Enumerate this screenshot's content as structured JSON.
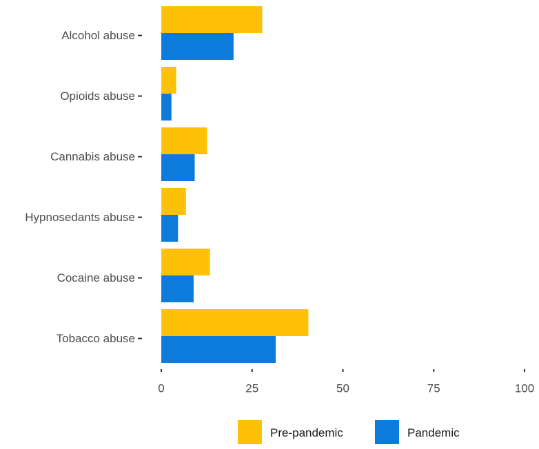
{
  "chart_data": {
    "type": "bar",
    "orientation": "horizontal",
    "categories": [
      "Alcohol abuse",
      "Opioids abuse",
      "Cannabis abuse",
      "Hypnosedants abuse",
      "Cocaine abuse",
      "Tobacco abuse"
    ],
    "series": [
      {
        "name": "Pre-pandemic",
        "color": "#FFC107",
        "values": [
          27.8,
          4.1,
          12.6,
          6.8,
          13.4,
          40.5
        ]
      },
      {
        "name": "Pandemic",
        "color": "#0C7BDC",
        "values": [
          19.9,
          2.8,
          9.2,
          4.6,
          8.9,
          31.5
        ]
      }
    ],
    "x_ticks": [
      0,
      25,
      50,
      75,
      100
    ],
    "x_tick_labels": [
      "0",
      "25",
      "50",
      "75",
      "100"
    ],
    "xlim": [
      0,
      100
    ],
    "grid": false,
    "legend_position": "bottom"
  }
}
